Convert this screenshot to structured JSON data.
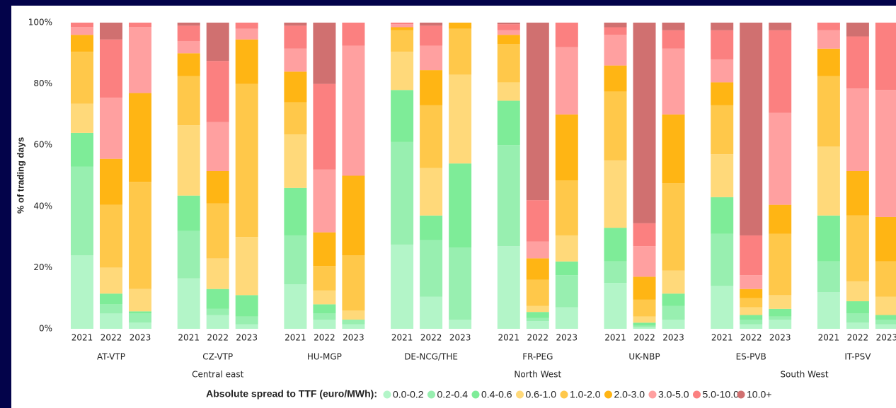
{
  "chart_data": {
    "type": "stacked_bar",
    "y_label": "% of trading days",
    "legend_title": "Absolute spread to TTF (euro/MWh):",
    "categories": [
      "2021",
      "2022",
      "2023",
      "2021",
      "2022",
      "2023",
      "2021",
      "2022",
      "2023",
      "2021",
      "2022",
      "2023",
      "2021",
      "2022",
      "2023",
      "2021",
      "2022",
      "2023",
      "2021",
      "2022",
      "2023",
      "2021",
      "2022",
      "2023"
    ],
    "regions": [
      {
        "name": "Central east",
        "hubs": [
          "AT-VTP",
          "CZ-VTP",
          "HU-MGP"
        ]
      },
      {
        "name": "North West",
        "hubs": [
          "DE-NCG/THE",
          "FR-PEG",
          "UK-NBP"
        ]
      },
      {
        "name": "South West",
        "hubs": [
          "ES-PVB",
          "IT-PSV"
        ]
      }
    ],
    "ylim": [
      0,
      100
    ],
    "yticks": [
      {
        "value": 0,
        "label": "0%"
      },
      {
        "value": 20,
        "label": "20%"
      },
      {
        "value": 40,
        "label": "40%"
      },
      {
        "value": 60,
        "label": "60%"
      },
      {
        "value": 80,
        "label": "80%"
      },
      {
        "value": 100,
        "label": "100%"
      }
    ],
    "grid": false,
    "series": [
      {
        "name": "0.0-0.2",
        "color": "#b3f5c8",
        "values": [
          24,
          5,
          2,
          16.5,
          4.5,
          1.5,
          14.5,
          3,
          1.5,
          27.5,
          10.5,
          3,
          27,
          2.5,
          7,
          15,
          0.5,
          3,
          14,
          1.5,
          3,
          12,
          2,
          1.5
        ]
      },
      {
        "name": "0.2-0.4",
        "color": "#98efb0",
        "values": [
          29,
          3,
          3,
          15.5,
          2,
          2.5,
          16,
          2,
          1.5,
          33.5,
          18.5,
          23.5,
          33,
          1,
          10.5,
          7,
          0.5,
          4.5,
          17,
          1.5,
          1,
          10,
          3,
          1.5
        ]
      },
      {
        "name": "0.4-0.6",
        "color": "#7eec98",
        "values": [
          11,
          3.5,
          0.7,
          11.5,
          6.5,
          7,
          15.5,
          3,
          0,
          17,
          8,
          27.5,
          14.5,
          2,
          4.5,
          11,
          1,
          4,
          12,
          1.5,
          2.5,
          15,
          4,
          1.5
        ]
      },
      {
        "name": "0.6-1.0",
        "color": "#ffd97a",
        "values": [
          9.5,
          8.5,
          7.3,
          23,
          10,
          19,
          17.5,
          4.5,
          3,
          12.5,
          15.5,
          29,
          6,
          2,
          8.5,
          22,
          2,
          7.5,
          14,
          2.5,
          4.5,
          22.5,
          6.5,
          6
        ]
      },
      {
        "name": "1.0-2.0",
        "color": "#ffc84a",
        "values": [
          17,
          20.5,
          35,
          16,
          18,
          50,
          10.5,
          8,
          18,
          7,
          20.5,
          15,
          12.5,
          8.5,
          18,
          22.5,
          5.5,
          28.5,
          16,
          3,
          20,
          23,
          21.5,
          11.5
        ]
      },
      {
        "name": "2.0-3.0",
        "color": "#ffb514",
        "values": [
          5.5,
          15,
          29,
          7.5,
          10.5,
          14.5,
          10,
          11,
          26,
          1,
          11.5,
          2,
          3,
          7,
          21.5,
          8.5,
          7.5,
          22.5,
          7.5,
          3,
          9.5,
          9,
          14.5,
          14.5
        ]
      },
      {
        "name": "3.0-5.0",
        "color": "#ffa0a0",
        "values": [
          2.6,
          20,
          21.6,
          4,
          16,
          3.5,
          7.5,
          20.5,
          42.5,
          1,
          8,
          0,
          1.5,
          5.5,
          22,
          10,
          10,
          21.5,
          7.5,
          4.5,
          30,
          6,
          27,
          41.5
        ]
      },
      {
        "name": "5.0-10.0",
        "color": "#fb8080",
        "values": [
          1.4,
          19,
          1.4,
          5,
          20,
          2,
          7.5,
          28,
          7.5,
          0.5,
          6.5,
          0,
          2,
          13.5,
          8,
          2.5,
          7.5,
          6,
          9.5,
          13,
          27,
          2.5,
          17,
          22
        ]
      },
      {
        "name": "10.0+",
        "color": "#d07070",
        "values": [
          0,
          5.5,
          0,
          1,
          12.5,
          0,
          1,
          20,
          0,
          0,
          1,
          0,
          0.5,
          58,
          0,
          1.5,
          65.5,
          2.5,
          2.5,
          69.5,
          2.5,
          0,
          4.5,
          0
        ]
      }
    ]
  }
}
